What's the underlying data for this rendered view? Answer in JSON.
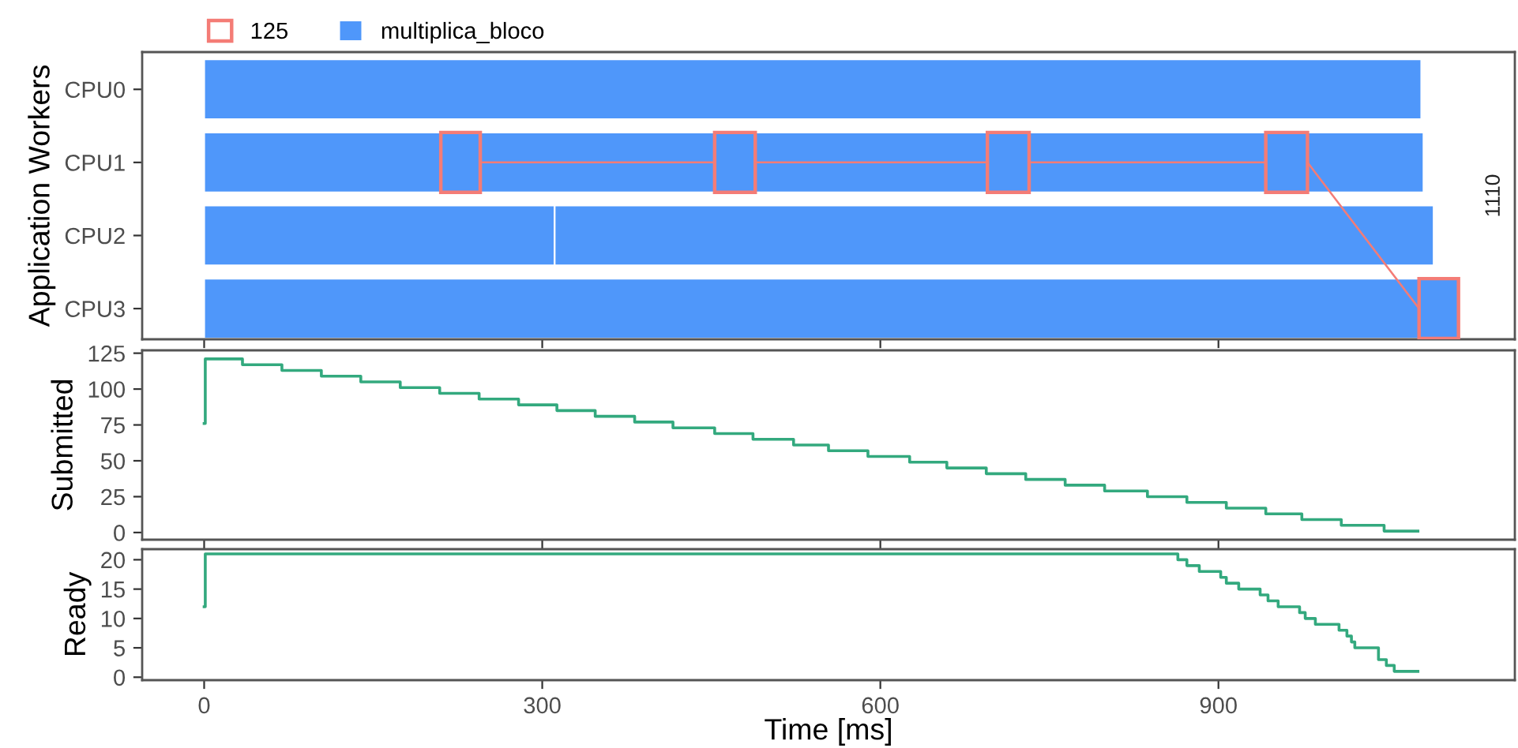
{
  "chart_data": [
    {
      "type": "bar",
      "orientation": "horizontal",
      "ylabel": "Application Workers",
      "categories": [
        "CPU0",
        "CPU1",
        "CPU2",
        "CPU3"
      ],
      "xlim": [
        -55,
        1163
      ],
      "xticks": [
        0,
        300,
        600,
        900
      ],
      "tick_labels": "y",
      "grid": false,
      "legend": "top left",
      "series": [
        {
          "name": "125",
          "type": "bar",
          "color": "#f47c76",
          "line_style": "solid",
          "base": [
            null,
            210,
            null,
            null
          ],
          "values": [
            null,
            35,
            null,
            null
          ]
        },
        {
          "name": "multiplica_bloco",
          "type": "bar",
          "color": "#4f97fa",
          "base": [
            0,
            0,
            0,
            0
          ],
          "values": [
            1080,
            1082,
            311,
            1113
          ]
        },
        {
          "type": "bar",
          "color": "#4f97fa",
          "base": [
            null,
            null,
            311,
            null
          ],
          "values": [
            null,
            null,
            780,
            null
          ]
        },
        {
          "type": "bar",
          "color": "#f47c76",
          "line_style": "solid",
          "base": [
            null,
            453,
            null,
            null
          ],
          "values": [
            null,
            36,
            null,
            null
          ]
        },
        {
          "type": "bar",
          "color": "#f47c76",
          "line_style": "solid",
          "base": [
            null,
            695,
            null,
            null
          ],
          "values": [
            null,
            37,
            null,
            null
          ]
        },
        {
          "type": "bar",
          "color": "#f47c76",
          "line_style": "solid",
          "base": [
            null,
            942,
            null,
            null
          ],
          "values": [
            null,
            37,
            null,
            null
          ]
        },
        {
          "type": "bar",
          "color": "#f47c76",
          "line_style": "solid",
          "base": [
            null,
            null,
            null,
            1078
          ],
          "values": [
            null,
            null,
            null,
            35
          ]
        }
      ],
      "annotations": [
        "1110"
      ]
    },
    {
      "type": "step",
      "ylabel": "Submitted",
      "xlim": [
        -55,
        1163
      ],
      "xticks": [
        0,
        300,
        600,
        900
      ],
      "ylim": [
        -5,
        127
      ],
      "yticks": [
        0,
        25,
        50,
        75,
        100,
        125
      ],
      "tick_labels": "y",
      "grid": false,
      "series": [
        {
          "color": "#33a97e",
          "x": [
            0,
            1,
            34,
            69,
            104,
            139,
            174,
            209,
            244,
            279,
            313,
            347,
            382,
            416,
            453,
            487,
            523,
            554,
            589,
            626,
            659,
            694,
            729,
            764,
            799,
            837,
            872,
            907,
            942,
            974,
            1009,
            1047,
            1077
          ],
          "values": [
            76,
            121,
            117,
            113,
            109,
            105,
            101,
            97,
            93,
            89,
            85,
            81,
            77,
            73,
            69,
            65,
            61,
            57,
            53,
            49,
            45,
            41,
            37,
            33,
            29,
            25,
            21,
            17,
            13,
            9,
            5,
            1,
            1
          ]
        }
      ]
    },
    {
      "type": "step",
      "ylabel": "Ready",
      "xlabel": "Time [ms]",
      "xlim": [
        -55,
        1163
      ],
      "xticks": [
        0,
        300,
        600,
        900
      ],
      "ylim": [
        -0.5,
        21.8
      ],
      "yticks": [
        0,
        5,
        10,
        15,
        20
      ],
      "grid": false,
      "series": [
        {
          "color": "#33a97e",
          "x": [
            0,
            1,
            864,
            872,
            883,
            902,
            907,
            918,
            937,
            944,
            953,
            972,
            977,
            986,
            1007,
            1014,
            1018,
            1021,
            1042,
            1049,
            1056,
            1077
          ],
          "values": [
            12,
            21,
            20,
            19,
            18,
            17,
            16,
            15,
            14,
            13,
            12,
            11,
            10,
            9,
            8,
            7,
            6,
            5,
            3,
            2,
            1,
            1
          ]
        }
      ]
    }
  ]
}
